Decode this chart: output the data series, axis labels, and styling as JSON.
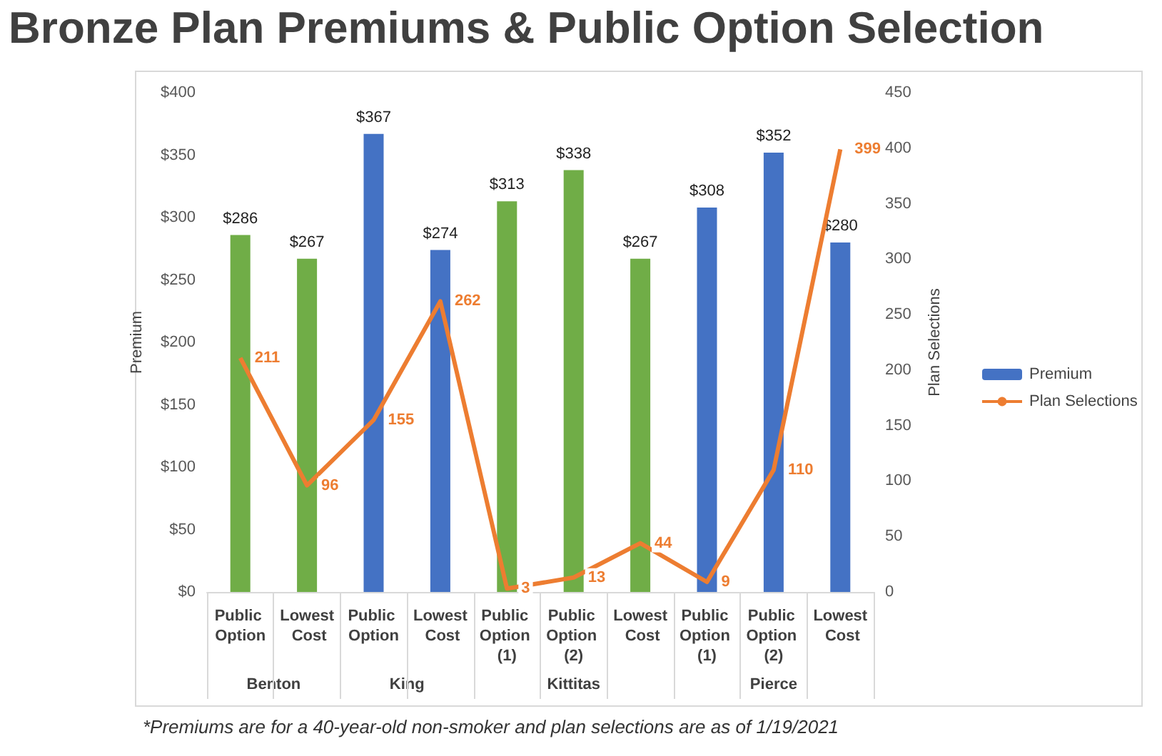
{
  "chart_data": {
    "type": "bar",
    "title": "Bronze Plan Premiums & Public Option Selection",
    "categories": [
      "Public Option",
      "Lowest Cost",
      "Public Option",
      "Lowest Cost",
      "Public Option (1)",
      "Public Option (2)",
      "Lowest Cost",
      "Public Option (1)",
      "Public Option (2)",
      "Lowest Cost"
    ],
    "series": [
      {
        "name": "Premium",
        "color": "#4472c4",
        "colors": [
          "#70ad47",
          "#70ad47",
          "#4472c4",
          "#4472c4",
          "#70ad47",
          "#70ad47",
          "#70ad47",
          "#4472c4",
          "#4472c4",
          "#4472c4"
        ],
        "values": [
          286,
          267,
          367,
          274,
          313,
          338,
          267,
          308,
          352,
          280
        ],
        "value_labels": [
          "$286",
          "$267",
          "$367",
          "$274",
          "$313",
          "$338",
          "$267",
          "$308",
          "$352",
          "$280"
        ]
      },
      {
        "name": "Plan Selections",
        "type": "line",
        "axis": "y2",
        "color": "#ed7d31",
        "values": [
          211,
          96,
          155,
          262,
          3,
          13,
          44,
          9,
          110,
          399
        ],
        "value_labels": [
          "211",
          "96",
          "155",
          "262",
          "3",
          "13",
          "44",
          "9",
          "110",
          "399"
        ]
      }
    ],
    "ylabel": "Premium",
    "y2label": "Plan Selections",
    "ylim": [
      0,
      400
    ],
    "yticks": [
      {
        "value": 0,
        "label": "$0"
      },
      {
        "value": 50,
        "label": "$50"
      },
      {
        "value": 100,
        "label": "$100"
      },
      {
        "value": 150,
        "label": "$150"
      },
      {
        "value": 200,
        "label": "$200"
      },
      {
        "value": 250,
        "label": "$250"
      },
      {
        "value": 300,
        "label": "$300"
      },
      {
        "value": 350,
        "label": "$350"
      },
      {
        "value": 400,
        "label": "$400"
      }
    ],
    "y2lim": [
      0,
      450
    ],
    "y2ticks": [
      0,
      50,
      100,
      150,
      200,
      250,
      300,
      350,
      400,
      450
    ],
    "legend": "right",
    "annotations": [
      "*Premiums are for a 40-year-old non-smoker and plan selections are as of 1/19/2021",
      "Benton",
      "King",
      "Kittitas",
      "Pierce"
    ]
  }
}
